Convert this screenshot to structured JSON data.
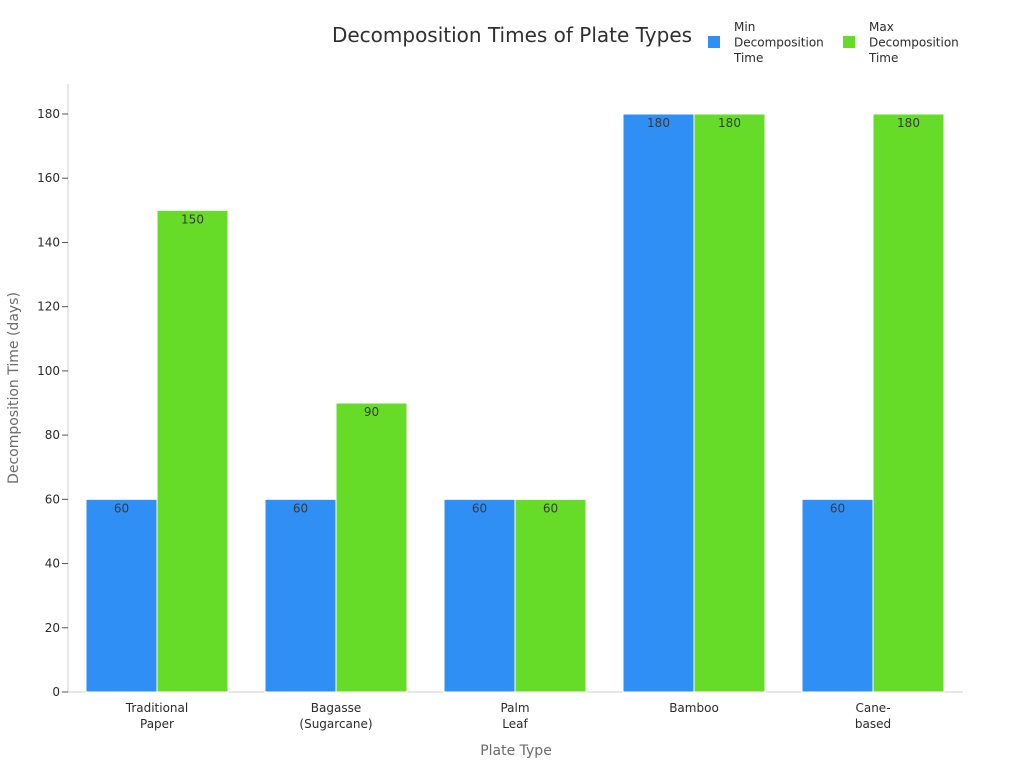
{
  "chart_data": {
    "type": "bar",
    "title": "Decomposition Times of Plate Types",
    "xlabel": "Plate Type",
    "ylabel": "Decomposition Time (days)",
    "categories": [
      [
        "Traditional",
        "Paper"
      ],
      [
        "Bagasse",
        "(Sugarcane)"
      ],
      [
        "Palm",
        "Leaf"
      ],
      [
        "Bamboo"
      ],
      [
        "Cane-",
        "based"
      ]
    ],
    "series": [
      {
        "name": [
          "Min",
          "Decomposition",
          "Time"
        ],
        "color": "#2f8ff5",
        "values": [
          60,
          60,
          60,
          180,
          60
        ]
      },
      {
        "name": [
          "Max",
          "Decomposition",
          "Time"
        ],
        "color": "#66db28",
        "values": [
          150,
          90,
          60,
          180,
          180
        ]
      }
    ],
    "ylim": [
      0,
      190
    ],
    "yticks": [
      0,
      20,
      40,
      60,
      80,
      100,
      120,
      140,
      160,
      180
    ],
    "grid": false,
    "legend_position": "top-right"
  }
}
